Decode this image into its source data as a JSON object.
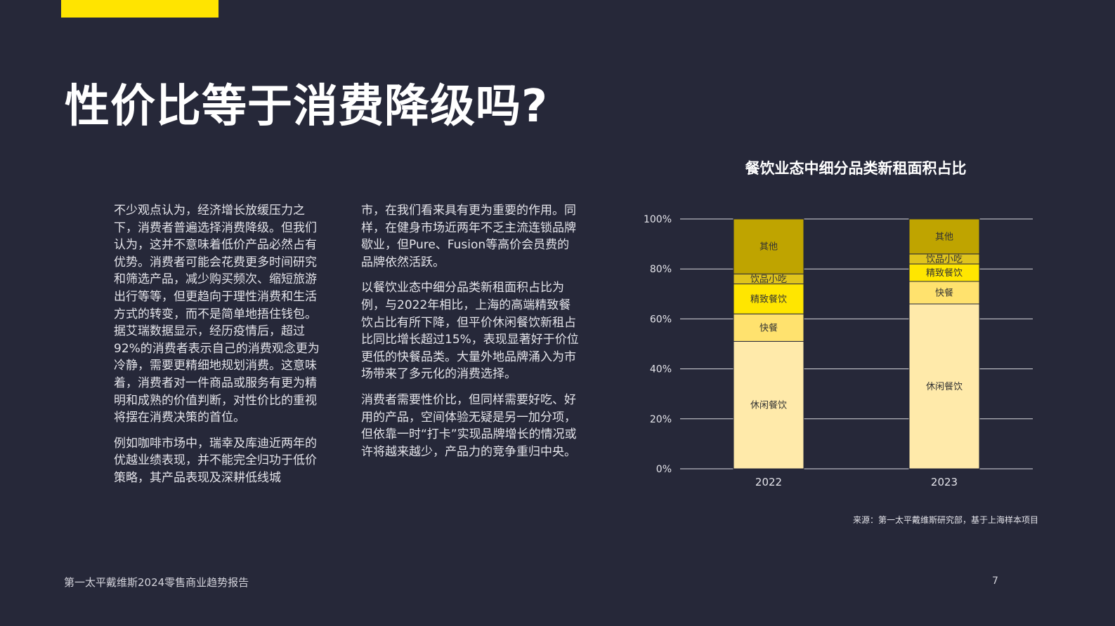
{
  "colors": {
    "background": "#262839",
    "accent": "#FFE400",
    "segments": {
      "休闲餐饮": "#FFEAAA",
      "快餐": "#FFE26E",
      "精致餐饮": "#FFE600",
      "饮品小吃": "#E0C41C",
      "其他": "#BFA400"
    }
  },
  "title": "性价比等于消费降级吗?",
  "left_column": [
    "不少观点认为，经济增长放缓压力之下，消费者普遍选择消费降级。但我们认为，这并不意味着低价产品必然占有优势。消费者可能会花费更多时间研究和筛选产品，减少购买频次、缩短旅游出行等等，但更趋向于理性消费和生活方式的转变，而不是简单地捂住钱包。据艾瑞数据显示，经历疫情后，超过92%的消费者表示自己的消费观念更为冷静，需要更精细地规划消费。这意味着，消费者对一件商品或服务有更为精明和成熟的价值判断，对性价比的重视将摆在消费决策的首位。",
    "例如咖啡市场中，瑞幸及库迪近两年的优越业绩表现，并不能完全归功于低价策略，其产品表现及深耕低线城"
  ],
  "middle_column": [
    "市，在我们看来具有更为重要的作用。同样，在健身市场近两年不乏主流连锁品牌歇业，但Pure、Fusion等高价会员费的品牌依然活跃。",
    "以餐饮业态中细分品类新租面积占比为例，与2022年相比，上海的高端精致餐饮占比有所下降，但平价休闲餐饮新租占比同比增长超过15%，表现显著好于价位更低的快餐品类。大量外地品牌涌入为市场带来了多元化的消费选择。",
    "消费者需要性价比，但同样需要好吃、好用的产品，空间体验无疑是另一加分项，但依靠一时“打卡”实现品牌增长的情况或许将越来越少，产品力的竞争重归中央。"
  ],
  "chart_data": {
    "type": "bar",
    "stacked": true,
    "title": "餐饮业态中细分品类新租面积占比",
    "categories": [
      "2022",
      "2023"
    ],
    "series": [
      {
        "name": "休闲餐饮",
        "values": [
          51,
          66
        ]
      },
      {
        "name": "快餐",
        "values": [
          11,
          9
        ]
      },
      {
        "name": "精致餐饮",
        "values": [
          12,
          7
        ]
      },
      {
        "name": "饮品小吃",
        "values": [
          4,
          4
        ]
      },
      {
        "name": "其他",
        "values": [
          22,
          14
        ]
      }
    ],
    "ylim": [
      0,
      100
    ],
    "yticks": [
      "0%",
      "20%",
      "40%",
      "60%",
      "80%",
      "100%"
    ],
    "grid": true,
    "legend": "none",
    "source": "来源：第一太平戴维斯研究部，基于上海样本项目"
  },
  "footer": {
    "report": "第一太平戴维斯2024零售商业趋势报告",
    "page": "7"
  }
}
